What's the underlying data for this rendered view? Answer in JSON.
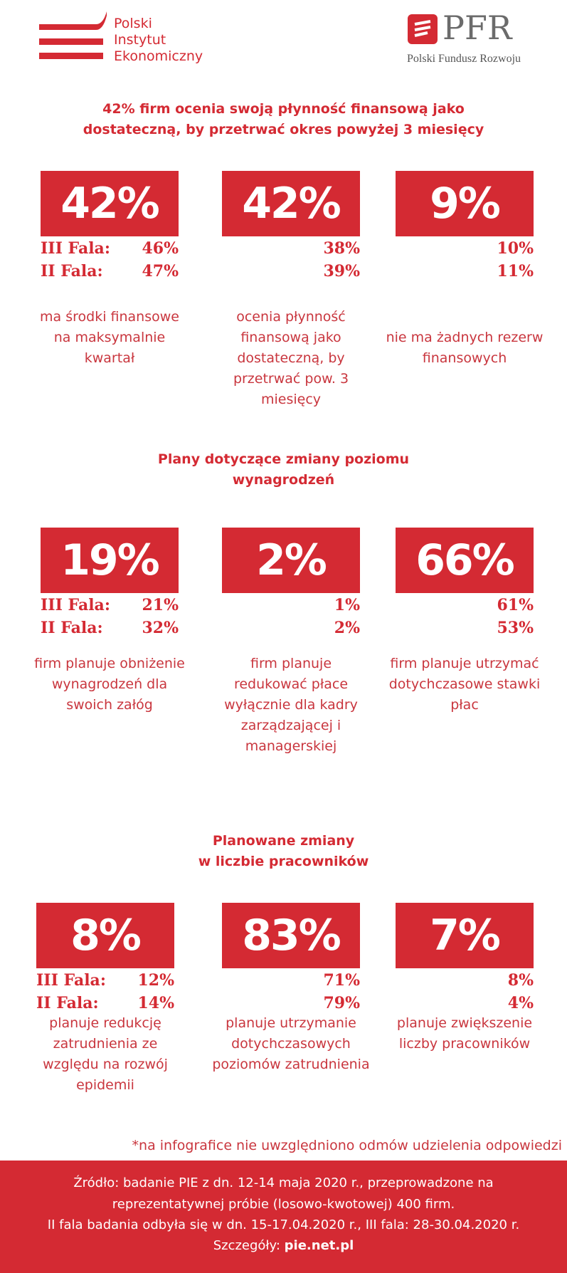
{
  "header": {
    "pie_logo": [
      "Polski",
      "Instytut",
      "Ekonomiczny"
    ],
    "pfr_logo": "PFR",
    "pfr_name": "Polski Fundusz Rozwoju"
  },
  "sections": [
    {
      "title": [
        "42% firm ocenia swoją płynność finansową jako",
        "dostateczną, by przetrwać okres powyżej 3 miesięcy"
      ],
      "wave_labels": [
        "III Fala:",
        "II Fala:"
      ],
      "cards": [
        {
          "big": "42%",
          "waves": [
            "46%",
            "47%"
          ],
          "description": "ma środki finansowe na maksymalnie kwartał"
        },
        {
          "big": "42%",
          "waves": [
            "38%",
            "39%"
          ],
          "description": "ocenia płynność finansową jako dostateczną, by przetrwać pow. 3 miesięcy"
        },
        {
          "big": "9%",
          "waves": [
            "10%",
            "11%"
          ],
          "description": "nie ma żadnych rezerw finansowych"
        }
      ]
    },
    {
      "title": [
        "Plany dotyczące zmiany poziomu",
        "wynagrodzeń"
      ],
      "wave_labels": [
        "III Fala:",
        "II Fala:"
      ],
      "cards": [
        {
          "big": "19%",
          "waves": [
            "21%",
            "32%"
          ],
          "description": "firm planuje obniżenie wynagrodzeń dla swoich załóg"
        },
        {
          "big": "2%",
          "waves": [
            "1%",
            "2%"
          ],
          "description": "firm planuje redukować płace wyłącznie dla kadry zarządzającej i managerskiej"
        },
        {
          "big": "66%",
          "waves": [
            "61%",
            "53%"
          ],
          "description": "firm planuje utrzymać dotychczasowe stawki płac"
        }
      ]
    },
    {
      "title": [
        "Planowane zmiany",
        "w liczbie pracowników"
      ],
      "wave_labels": [
        "III Fala:",
        "II Fala:"
      ],
      "cards": [
        {
          "big": "8%",
          "waves": [
            "12%",
            "14%"
          ],
          "description": "planuje redukcję zatrudnienia ze względu na rozwój epidemii"
        },
        {
          "big": "83%",
          "waves": [
            "71%",
            "79%"
          ],
          "description": "planuje utrzymanie dotychczasowych poziomów zatrudnienia"
        },
        {
          "big": "7%",
          "waves": [
            "8%",
            "4%"
          ],
          "description": "planuje zwiększenie liczby pracowników"
        }
      ]
    }
  ],
  "footnote": "*na infografice nie uwzględniono odmów udzielenia odpowiedzi",
  "footer": {
    "lines": [
      "Źródło: badanie PIE z dn. 12-14 maja 2020 r., przeprowadzone na",
      "reprezentatywnej próbie (losowo-kwotowej) 400 firm.",
      "II fala badania odbyła się w dn. 15-17.04.2020 r., III fala: 28-30.04.2020 r."
    ],
    "details_label": "Szczegóły: ",
    "details_link": "pie.net.pl"
  }
}
